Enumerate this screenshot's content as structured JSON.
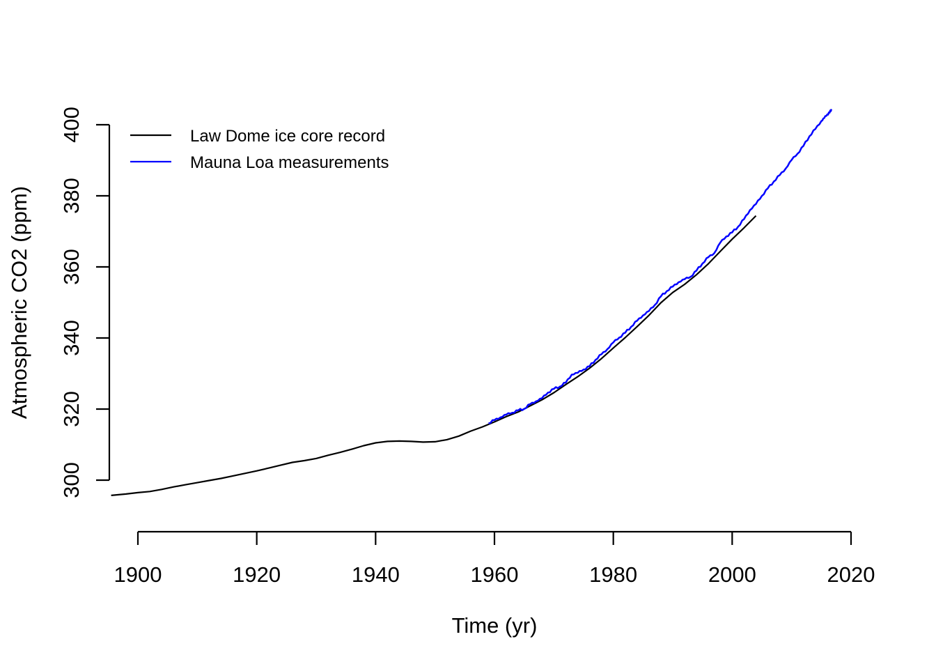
{
  "chart_data": {
    "type": "line",
    "title": "",
    "xlabel": "Time (yr)",
    "ylabel": "Atmospheric CO2 (ppm)",
    "x_ticks": [
      1900,
      1920,
      1940,
      1960,
      1980,
      2000,
      2020
    ],
    "y_ticks": [
      300,
      320,
      340,
      360,
      380,
      400
    ],
    "xlim": [
      1894.5,
      2021.5
    ],
    "ylim": [
      295,
      405
    ],
    "grid": false,
    "axis_color": "#000000",
    "background": "#ffffff",
    "legend": {
      "position": "top-left",
      "border": "none",
      "entries": [
        {
          "label": "Law Dome ice core record",
          "color": "#000000"
        },
        {
          "label": "Mauna Loa measurements",
          "color": "#0000ff"
        }
      ]
    },
    "series": [
      {
        "name": "Law Dome ice core record",
        "color": "#000000",
        "style": "smooth",
        "points": [
          [
            1895.5,
            295.7
          ],
          [
            1898,
            296.1
          ],
          [
            1900,
            296.5
          ],
          [
            1902,
            296.8
          ],
          [
            1904,
            297.4
          ],
          [
            1906,
            298.1
          ],
          [
            1908,
            298.7
          ],
          [
            1910,
            299.3
          ],
          [
            1912,
            299.9
          ],
          [
            1914,
            300.5
          ],
          [
            1916,
            301.2
          ],
          [
            1918,
            301.9
          ],
          [
            1920,
            302.6
          ],
          [
            1922,
            303.4
          ],
          [
            1924,
            304.2
          ],
          [
            1926,
            305.0
          ],
          [
            1928,
            305.5
          ],
          [
            1930,
            306.1
          ],
          [
            1932,
            307.0
          ],
          [
            1934,
            307.8
          ],
          [
            1936,
            308.7
          ],
          [
            1938,
            309.7
          ],
          [
            1940,
            310.5
          ],
          [
            1942,
            310.9
          ],
          [
            1944,
            311.0
          ],
          [
            1946,
            310.9
          ],
          [
            1948,
            310.7
          ],
          [
            1950,
            310.8
          ],
          [
            1952,
            311.4
          ],
          [
            1954,
            312.4
          ],
          [
            1956,
            313.8
          ],
          [
            1958,
            315.0
          ],
          [
            1960,
            316.4
          ],
          [
            1962,
            317.9
          ],
          [
            1964,
            319.2
          ],
          [
            1966,
            320.9
          ],
          [
            1968,
            322.6
          ],
          [
            1970,
            324.6
          ],
          [
            1972,
            326.9
          ],
          [
            1974,
            329.1
          ],
          [
            1976,
            331.5
          ],
          [
            1978,
            334.2
          ],
          [
            1980,
            337.2
          ],
          [
            1982,
            340.1
          ],
          [
            1984,
            343.2
          ],
          [
            1986,
            346.4
          ],
          [
            1988,
            349.9
          ],
          [
            1990,
            352.8
          ],
          [
            1992,
            355.1
          ],
          [
            1994,
            357.8
          ],
          [
            1996,
            360.9
          ],
          [
            1998,
            364.4
          ],
          [
            2000,
            367.8
          ],
          [
            2002,
            371.0
          ],
          [
            2004,
            374.4
          ]
        ]
      },
      {
        "name": "Mauna Loa measurements",
        "color": "#0000ff",
        "style": "jagged",
        "points": [
          [
            1959,
            315.97
          ],
          [
            1960,
            316.91
          ],
          [
            1961,
            317.64
          ],
          [
            1962,
            318.45
          ],
          [
            1963,
            318.99
          ],
          [
            1964,
            319.62
          ],
          [
            1965,
            320.04
          ],
          [
            1966,
            321.37
          ],
          [
            1967,
            322.18
          ],
          [
            1968,
            323.05
          ],
          [
            1969,
            324.62
          ],
          [
            1970,
            325.68
          ],
          [
            1971,
            326.32
          ],
          [
            1972,
            327.46
          ],
          [
            1973,
            329.68
          ],
          [
            1974,
            330.19
          ],
          [
            1975,
            331.12
          ],
          [
            1976,
            332.03
          ],
          [
            1977,
            333.84
          ],
          [
            1978,
            335.41
          ],
          [
            1979,
            336.84
          ],
          [
            1980,
            338.76
          ],
          [
            1981,
            340.12
          ],
          [
            1982,
            341.48
          ],
          [
            1983,
            343.15
          ],
          [
            1984,
            344.85
          ],
          [
            1985,
            346.35
          ],
          [
            1986,
            347.61
          ],
          [
            1987,
            349.31
          ],
          [
            1988,
            351.69
          ],
          [
            1989,
            353.2
          ],
          [
            1990,
            354.45
          ],
          [
            1991,
            355.7
          ],
          [
            1992,
            356.54
          ],
          [
            1993,
            357.21
          ],
          [
            1994,
            358.96
          ],
          [
            1995,
            360.97
          ],
          [
            1996,
            362.74
          ],
          [
            1997,
            363.88
          ],
          [
            1998,
            366.84
          ],
          [
            1999,
            368.54
          ],
          [
            2000,
            369.71
          ],
          [
            2001,
            371.32
          ],
          [
            2002,
            373.45
          ],
          [
            2003,
            375.98
          ],
          [
            2004,
            377.7
          ],
          [
            2005,
            379.98
          ],
          [
            2006,
            382.09
          ],
          [
            2007,
            384.02
          ],
          [
            2008,
            385.83
          ],
          [
            2009,
            387.64
          ],
          [
            2010,
            390.1
          ],
          [
            2011,
            391.85
          ],
          [
            2012,
            394.06
          ],
          [
            2013,
            396.74
          ],
          [
            2014,
            398.81
          ],
          [
            2015,
            401.01
          ],
          [
            2015.5,
            401.9
          ],
          [
            2016,
            402.9
          ],
          [
            2016.4,
            403.4
          ],
          [
            2016.7,
            404.4
          ]
        ]
      }
    ]
  }
}
